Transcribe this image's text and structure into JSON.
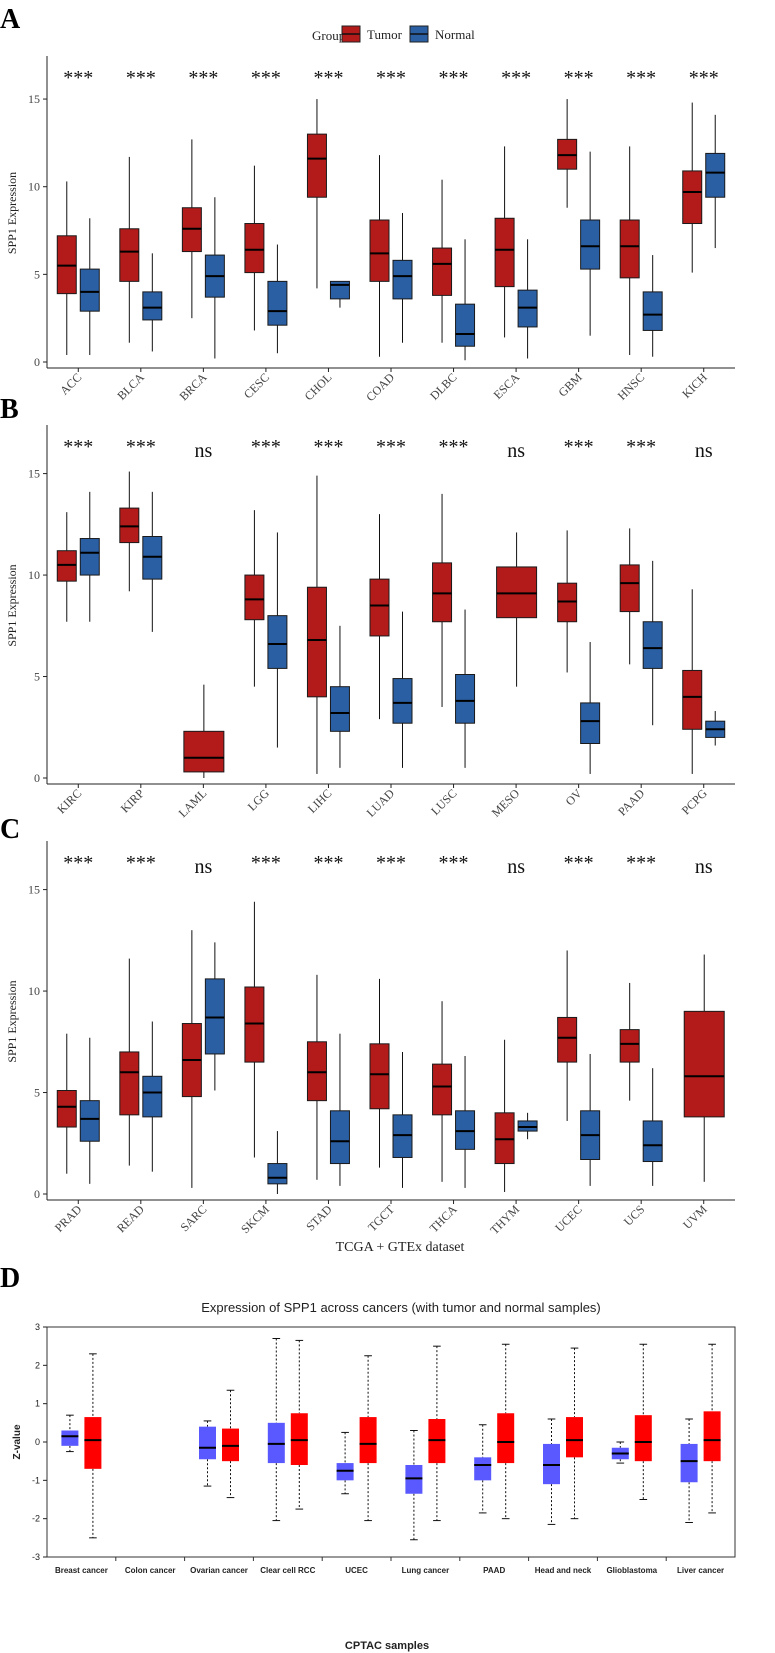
{
  "legend": {
    "title": "Group",
    "entries": [
      {
        "label": "Tumor",
        "color": "#b31b1b"
      },
      {
        "label": "Normal",
        "color": "#2a5fa3"
      }
    ]
  },
  "colors": {
    "tumor": "#b31b1b",
    "normal": "#2a5fa3",
    "cptac_tumor": "#ff0000",
    "cptac_normal": "#5959ff"
  },
  "chart_data": [
    {
      "panel_label": "A",
      "type": "boxplot",
      "ylabel": "SPP1 Expression",
      "xlabel": "",
      "ylim": [
        0,
        17
      ],
      "yticks": [
        0,
        5,
        10,
        15
      ],
      "categories": [
        "ACC",
        "BLCA",
        "BRCA",
        "CESC",
        "CHOL",
        "COAD",
        "DLBC",
        "ESCA",
        "GBM",
        "HNSC",
        "KICH"
      ],
      "significance": [
        "***",
        "***",
        "***",
        "***",
        "***",
        "***",
        "***",
        "***",
        "***",
        "***",
        "***"
      ],
      "series": [
        {
          "name": "Tumor",
          "boxes": [
            {
              "min": 0.4,
              "q1": 3.9,
              "median": 5.5,
              "q3": 7.2,
              "max": 10.3
            },
            {
              "min": 1.1,
              "q1": 4.6,
              "median": 6.3,
              "q3": 7.6,
              "max": 11.7
            },
            {
              "min": 2.5,
              "q1": 6.3,
              "median": 7.6,
              "q3": 8.8,
              "max": 12.7
            },
            {
              "min": 1.8,
              "q1": 5.1,
              "median": 6.4,
              "q3": 7.9,
              "max": 11.2
            },
            {
              "min": 4.2,
              "q1": 9.4,
              "median": 11.6,
              "q3": 13.0,
              "max": 15.0
            },
            {
              "min": 0.3,
              "q1": 4.6,
              "median": 6.2,
              "q3": 8.1,
              "max": 11.8
            },
            {
              "min": 1.1,
              "q1": 3.8,
              "median": 5.6,
              "q3": 6.5,
              "max": 10.4
            },
            {
              "min": 1.4,
              "q1": 4.3,
              "median": 6.4,
              "q3": 8.2,
              "max": 12.3
            },
            {
              "min": 8.8,
              "q1": 11.0,
              "median": 11.8,
              "q3": 12.7,
              "max": 15.0
            },
            {
              "min": 0.4,
              "q1": 4.8,
              "median": 6.6,
              "q3": 8.1,
              "max": 12.3
            },
            {
              "min": 5.1,
              "q1": 7.9,
              "median": 9.7,
              "q3": 10.9,
              "max": 14.8
            }
          ]
        },
        {
          "name": "Normal",
          "boxes": [
            {
              "min": 0.4,
              "q1": 2.9,
              "median": 4.0,
              "q3": 5.3,
              "max": 8.2
            },
            {
              "min": 0.6,
              "q1": 2.4,
              "median": 3.1,
              "q3": 4.0,
              "max": 6.2
            },
            {
              "min": 0.2,
              "q1": 3.7,
              "median": 4.9,
              "q3": 6.1,
              "max": 9.4
            },
            {
              "min": 0.5,
              "q1": 2.1,
              "median": 2.9,
              "q3": 4.6,
              "max": 6.7
            },
            {
              "min": 3.1,
              "q1": 3.6,
              "median": 4.4,
              "q3": 4.6,
              "max": 4.6
            },
            {
              "min": 1.1,
              "q1": 3.6,
              "median": 4.9,
              "q3": 5.8,
              "max": 8.5
            },
            {
              "min": 0.1,
              "q1": 0.9,
              "median": 1.6,
              "q3": 3.3,
              "max": 7.0
            },
            {
              "min": 0.2,
              "q1": 2.0,
              "median": 3.1,
              "q3": 4.1,
              "max": 7.0
            },
            {
              "min": 1.5,
              "q1": 5.3,
              "median": 6.6,
              "q3": 8.1,
              "max": 12.0
            },
            {
              "min": 0.3,
              "q1": 1.8,
              "median": 2.7,
              "q3": 4.0,
              "max": 6.1
            },
            {
              "min": 6.5,
              "q1": 9.4,
              "median": 10.8,
              "q3": 11.9,
              "max": 14.1
            }
          ]
        }
      ]
    },
    {
      "panel_label": "B",
      "type": "boxplot",
      "ylabel": "SPP1 Expression",
      "xlabel": "",
      "ylim": [
        0,
        17
      ],
      "yticks": [
        0,
        5,
        10,
        15
      ],
      "categories": [
        "KIRC",
        "KIRP",
        "LAML",
        "LGG",
        "LIHC",
        "LUAD",
        "LUSC",
        "MESO",
        "OV",
        "PAAD",
        "PCPG"
      ],
      "significance": [
        "***",
        "***",
        "ns",
        "***",
        "***",
        "***",
        "***",
        "ns",
        "***",
        "***",
        "ns"
      ],
      "series": [
        {
          "name": "Tumor",
          "boxes": [
            {
              "min": 7.7,
              "q1": 9.7,
              "median": 10.5,
              "q3": 11.2,
              "max": 13.1
            },
            {
              "min": 9.2,
              "q1": 11.6,
              "median": 12.4,
              "q3": 13.3,
              "max": 15.1
            },
            {
              "min": 0.0,
              "q1": 0.3,
              "median": 1.0,
              "q3": 2.3,
              "max": 4.6
            },
            {
              "min": 4.5,
              "q1": 7.8,
              "median": 8.8,
              "q3": 10.0,
              "max": 13.2
            },
            {
              "min": 0.2,
              "q1": 4.0,
              "median": 6.8,
              "q3": 9.4,
              "max": 14.9
            },
            {
              "min": 2.9,
              "q1": 7.0,
              "median": 8.5,
              "q3": 9.8,
              "max": 13.0
            },
            {
              "min": 3.5,
              "q1": 7.7,
              "median": 9.1,
              "q3": 10.6,
              "max": 14.0
            },
            {
              "min": 4.5,
              "q1": 7.9,
              "median": 9.1,
              "q3": 10.4,
              "max": 12.1
            },
            {
              "min": 5.2,
              "q1": 7.7,
              "median": 8.7,
              "q3": 9.6,
              "max": 12.2
            },
            {
              "min": 5.6,
              "q1": 8.2,
              "median": 9.6,
              "q3": 10.5,
              "max": 12.3
            },
            {
              "min": 0.2,
              "q1": 2.4,
              "median": 4.0,
              "q3": 5.3,
              "max": 9.3
            }
          ]
        },
        {
          "name": "Normal",
          "boxes": [
            {
              "min": 7.7,
              "q1": 10.0,
              "median": 11.1,
              "q3": 11.8,
              "max": 14.1
            },
            {
              "min": 7.2,
              "q1": 9.8,
              "median": 10.9,
              "q3": 11.9,
              "max": 14.1
            },
            null,
            {
              "min": 1.5,
              "q1": 5.4,
              "median": 6.6,
              "q3": 8.0,
              "max": 12.1
            },
            {
              "min": 0.5,
              "q1": 2.3,
              "median": 3.2,
              "q3": 4.5,
              "max": 7.5
            },
            {
              "min": 0.5,
              "q1": 2.7,
              "median": 3.7,
              "q3": 4.9,
              "max": 8.2
            },
            {
              "min": 0.5,
              "q1": 2.7,
              "median": 3.8,
              "q3": 5.1,
              "max": 8.3
            },
            null,
            {
              "min": 0.2,
              "q1": 1.7,
              "median": 2.8,
              "q3": 3.7,
              "max": 6.7
            },
            {
              "min": 2.6,
              "q1": 5.4,
              "median": 6.4,
              "q3": 7.7,
              "max": 10.7
            },
            {
              "min": 1.6,
              "q1": 2.0,
              "median": 2.4,
              "q3": 2.8,
              "max": 3.3
            }
          ]
        }
      ]
    },
    {
      "panel_label": "C",
      "type": "boxplot",
      "ylabel": "SPP1 Expression",
      "xlabel": "TCGA + GTEx dataset",
      "ylim": [
        0,
        17
      ],
      "yticks": [
        0,
        5,
        10,
        15
      ],
      "categories": [
        "PRAD",
        "READ",
        "SARC",
        "SKCM",
        "STAD",
        "TGCT",
        "THCA",
        "THYM",
        "UCEC",
        "UCS",
        "UVM"
      ],
      "significance": [
        "***",
        "***",
        "ns",
        "***",
        "***",
        "***",
        "***",
        "ns",
        "***",
        "***",
        "ns"
      ],
      "series": [
        {
          "name": "Tumor",
          "boxes": [
            {
              "min": 1.0,
              "q1": 3.3,
              "median": 4.3,
              "q3": 5.1,
              "max": 7.9
            },
            {
              "min": 1.4,
              "q1": 3.9,
              "median": 6.0,
              "q3": 7.0,
              "max": 11.6
            },
            {
              "min": 0.3,
              "q1": 4.8,
              "median": 6.6,
              "q3": 8.4,
              "max": 13.0
            },
            {
              "min": 1.8,
              "q1": 6.5,
              "median": 8.4,
              "q3": 10.2,
              "max": 14.4
            },
            {
              "min": 0.7,
              "q1": 4.6,
              "median": 6.0,
              "q3": 7.5,
              "max": 10.8
            },
            {
              "min": 1.3,
              "q1": 4.2,
              "median": 5.9,
              "q3": 7.4,
              "max": 10.6
            },
            {
              "min": 0.6,
              "q1": 3.9,
              "median": 5.3,
              "q3": 6.4,
              "max": 9.5
            },
            {
              "min": 0.1,
              "q1": 1.5,
              "median": 2.7,
              "q3": 4.0,
              "max": 7.6
            },
            {
              "min": 3.6,
              "q1": 6.5,
              "median": 7.7,
              "q3": 8.7,
              "max": 12.0
            },
            {
              "min": 4.6,
              "q1": 6.5,
              "median": 7.4,
              "q3": 8.1,
              "max": 10.4
            },
            {
              "min": 0.6,
              "q1": 3.8,
              "median": 5.8,
              "q3": 9.0,
              "max": 11.8
            }
          ]
        },
        {
          "name": "Normal",
          "boxes": [
            {
              "min": 0.5,
              "q1": 2.6,
              "median": 3.7,
              "q3": 4.6,
              "max": 7.7
            },
            {
              "min": 1.1,
              "q1": 3.8,
              "median": 5.0,
              "q3": 5.8,
              "max": 8.5
            },
            {
              "min": 5.1,
              "q1": 6.9,
              "median": 8.7,
              "q3": 10.6,
              "max": 12.4
            },
            {
              "min": 0.0,
              "q1": 0.5,
              "median": 0.8,
              "q3": 1.5,
              "max": 3.1
            },
            {
              "min": 0.4,
              "q1": 1.5,
              "median": 2.6,
              "q3": 4.1,
              "max": 7.9
            },
            {
              "min": 0.3,
              "q1": 1.8,
              "median": 2.9,
              "q3": 3.9,
              "max": 7.0
            },
            {
              "min": 0.3,
              "q1": 2.2,
              "median": 3.1,
              "q3": 4.1,
              "max": 6.8
            },
            {
              "min": 2.7,
              "q1": 3.1,
              "median": 3.3,
              "q3": 3.6,
              "max": 4.0
            },
            {
              "min": 0.4,
              "q1": 1.7,
              "median": 2.9,
              "q3": 4.1,
              "max": 6.9
            },
            {
              "min": 0.4,
              "q1": 1.6,
              "median": 2.4,
              "q3": 3.6,
              "max": 6.2
            },
            null
          ]
        }
      ]
    },
    {
      "panel_label": "D",
      "type": "boxplot",
      "title": "Expression of SPP1 across cancers (with tumor and normal samples)",
      "ylabel": "Z-value",
      "xlabel": "CPTAC samples",
      "ylim": [
        -3,
        3
      ],
      "yticks": [
        -3,
        -2,
        -1,
        0,
        1,
        2,
        3
      ],
      "categories": [
        "Breast cancer",
        "Colon cancer",
        "Ovarian cancer",
        "Clear cell RCC",
        "UCEC",
        "Lung cancer",
        "PAAD",
        "Head and neck",
        "Glioblastoma",
        "Liver cancer"
      ],
      "series": [
        {
          "name": "Normal",
          "boxes": [
            {
              "min": -0.25,
              "q1": -0.1,
              "median": 0.15,
              "q3": 0.3,
              "max": 0.7
            },
            null,
            {
              "min": -1.15,
              "q1": -0.45,
              "median": -0.15,
              "q3": 0.4,
              "max": 0.55
            },
            {
              "min": -2.05,
              "q1": -0.55,
              "median": -0.05,
              "q3": 0.5,
              "max": 2.7
            },
            {
              "min": -1.35,
              "q1": -1.0,
              "median": -0.75,
              "q3": -0.55,
              "max": 0.25
            },
            {
              "min": -2.55,
              "q1": -1.35,
              "median": -0.95,
              "q3": -0.6,
              "max": 0.3
            },
            {
              "min": -1.85,
              "q1": -1.0,
              "median": -0.6,
              "q3": -0.4,
              "max": 0.45
            },
            {
              "min": -2.15,
              "q1": -1.1,
              "median": -0.6,
              "q3": -0.05,
              "max": 0.6
            },
            {
              "min": -0.55,
              "q1": -0.45,
              "median": -0.3,
              "q3": -0.15,
              "max": 0.0
            },
            {
              "min": -2.1,
              "q1": -1.05,
              "median": -0.5,
              "q3": -0.05,
              "max": 0.6
            }
          ]
        },
        {
          "name": "Tumor",
          "boxes": [
            {
              "min": -2.5,
              "q1": -0.7,
              "median": 0.05,
              "q3": 0.65,
              "max": 2.3
            },
            null,
            {
              "min": -1.45,
              "q1": -0.5,
              "median": -0.1,
              "q3": 0.35,
              "max": 1.35
            },
            {
              "min": -1.75,
              "q1": -0.6,
              "median": 0.05,
              "q3": 0.75,
              "max": 2.65
            },
            {
              "min": -2.05,
              "q1": -0.55,
              "median": -0.05,
              "q3": 0.65,
              "max": 2.25
            },
            {
              "min": -2.05,
              "q1": -0.55,
              "median": 0.05,
              "q3": 0.6,
              "max": 2.5
            },
            {
              "min": -2.0,
              "q1": -0.55,
              "median": 0.0,
              "q3": 0.75,
              "max": 2.55
            },
            {
              "min": -2.0,
              "q1": -0.4,
              "median": 0.05,
              "q3": 0.65,
              "max": 2.45
            },
            {
              "min": -1.5,
              "q1": -0.5,
              "median": 0.0,
              "q3": 0.7,
              "max": 2.55
            },
            {
              "min": -1.85,
              "q1": -0.5,
              "median": 0.05,
              "q3": 0.8,
              "max": 2.55
            }
          ]
        }
      ]
    }
  ]
}
